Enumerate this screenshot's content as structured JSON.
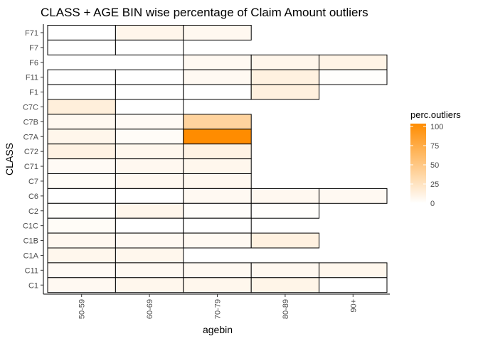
{
  "chart_data": {
    "type": "heatmap",
    "title": "CLASS + AGE BIN wise percentage of Claim Amount outliers",
    "xlabel": "agebin",
    "ylabel": "CLASS",
    "x_categories": [
      "50-59",
      "60-69",
      "70-79",
      "80-89",
      "90+"
    ],
    "y_categories": [
      "C1",
      "C11",
      "C1A",
      "C1B",
      "C1C",
      "C2",
      "C6",
      "C7",
      "C71",
      "C72",
      "C7A",
      "C7B",
      "C7C",
      "F1",
      "F11",
      "F6",
      "F7",
      "F71"
    ],
    "cells": [
      {
        "y": "F71",
        "x": "50-59",
        "value": 0
      },
      {
        "y": "F71",
        "x": "60-69",
        "value": 8
      },
      {
        "y": "F71",
        "x": "70-79",
        "value": 6
      },
      {
        "y": "F7",
        "x": "50-59",
        "value": 0
      },
      {
        "y": "F7",
        "x": "60-69",
        "value": 0
      },
      {
        "y": "F6",
        "x": "70-79",
        "value": 5
      },
      {
        "y": "F6",
        "x": "80-89",
        "value": 8
      },
      {
        "y": "F6",
        "x": "90+",
        "value": 10
      },
      {
        "y": "F11",
        "x": "50-59",
        "value": 0
      },
      {
        "y": "F11",
        "x": "60-69",
        "value": 0
      },
      {
        "y": "F11",
        "x": "70-79",
        "value": 5
      },
      {
        "y": "F11",
        "x": "80-89",
        "value": 12
      },
      {
        "y": "F11",
        "x": "90+",
        "value": 1
      },
      {
        "y": "F1",
        "x": "50-59",
        "value": 0
      },
      {
        "y": "F1",
        "x": "60-69",
        "value": 0
      },
      {
        "y": "F1",
        "x": "70-79",
        "value": 0
      },
      {
        "y": "F1",
        "x": "80-89",
        "value": 13
      },
      {
        "y": "C7C",
        "x": "50-59",
        "value": 14
      },
      {
        "y": "C7C",
        "x": "60-69",
        "value": 0
      },
      {
        "y": "C7B",
        "x": "50-59",
        "value": 6
      },
      {
        "y": "C7B",
        "x": "60-69",
        "value": 4
      },
      {
        "y": "C7B",
        "x": "70-79",
        "value": 38
      },
      {
        "y": "C7A",
        "x": "50-59",
        "value": 8
      },
      {
        "y": "C7A",
        "x": "60-69",
        "value": 3
      },
      {
        "y": "C7A",
        "x": "70-79",
        "value": 100
      },
      {
        "y": "C72",
        "x": "50-59",
        "value": 11
      },
      {
        "y": "C72",
        "x": "60-69",
        "value": 7
      },
      {
        "y": "C72",
        "x": "70-79",
        "value": 11
      },
      {
        "y": "C71",
        "x": "50-59",
        "value": 4
      },
      {
        "y": "C71",
        "x": "60-69",
        "value": 6
      },
      {
        "y": "C71",
        "x": "70-79",
        "value": 7
      },
      {
        "y": "C7",
        "x": "50-59",
        "value": 3
      },
      {
        "y": "C7",
        "x": "60-69",
        "value": 6
      },
      {
        "y": "C7",
        "x": "70-79",
        "value": 6
      },
      {
        "y": "C6",
        "x": "50-59",
        "value": 0
      },
      {
        "y": "C6",
        "x": "60-69",
        "value": 0
      },
      {
        "y": "C6",
        "x": "70-79",
        "value": 5
      },
      {
        "y": "C6",
        "x": "80-89",
        "value": 6
      },
      {
        "y": "C6",
        "x": "90+",
        "value": 5
      },
      {
        "y": "C2",
        "x": "50-59",
        "value": 1
      },
      {
        "y": "C2",
        "x": "60-69",
        "value": 8
      },
      {
        "y": "C2",
        "x": "70-79",
        "value": 2
      },
      {
        "y": "C2",
        "x": "80-89",
        "value": 1
      },
      {
        "y": "C1C",
        "x": "50-59",
        "value": 3
      },
      {
        "y": "C1C",
        "x": "60-69",
        "value": 0
      },
      {
        "y": "C1C",
        "x": "70-79",
        "value": 0
      },
      {
        "y": "C1B",
        "x": "50-59",
        "value": 6
      },
      {
        "y": "C1B",
        "x": "60-69",
        "value": 5
      },
      {
        "y": "C1B",
        "x": "70-79",
        "value": 5
      },
      {
        "y": "C1B",
        "x": "80-89",
        "value": 12
      },
      {
        "y": "C1A",
        "x": "50-59",
        "value": 7
      },
      {
        "y": "C1A",
        "x": "60-69",
        "value": 7
      },
      {
        "y": "C11",
        "x": "50-59",
        "value": 4
      },
      {
        "y": "C11",
        "x": "60-69",
        "value": 5
      },
      {
        "y": "C11",
        "x": "70-79",
        "value": 5
      },
      {
        "y": "C11",
        "x": "80-89",
        "value": 6
      },
      {
        "y": "C11",
        "x": "90+",
        "value": 7
      },
      {
        "y": "C1",
        "x": "50-59",
        "value": 5
      },
      {
        "y": "C1",
        "x": "60-69",
        "value": 7
      },
      {
        "y": "C1",
        "x": "70-79",
        "value": 7
      },
      {
        "y": "C1",
        "x": "80-89",
        "value": 9
      },
      {
        "y": "C1",
        "x": "90+",
        "value": 0
      }
    ],
    "color_scale": {
      "low": "#ffffff",
      "high": "#ff8c00",
      "range": [
        0,
        100
      ]
    },
    "legend": {
      "title": "perc.outliers",
      "ticks": [
        0,
        25,
        50,
        75,
        100
      ],
      "position": "right"
    },
    "grid": false
  }
}
